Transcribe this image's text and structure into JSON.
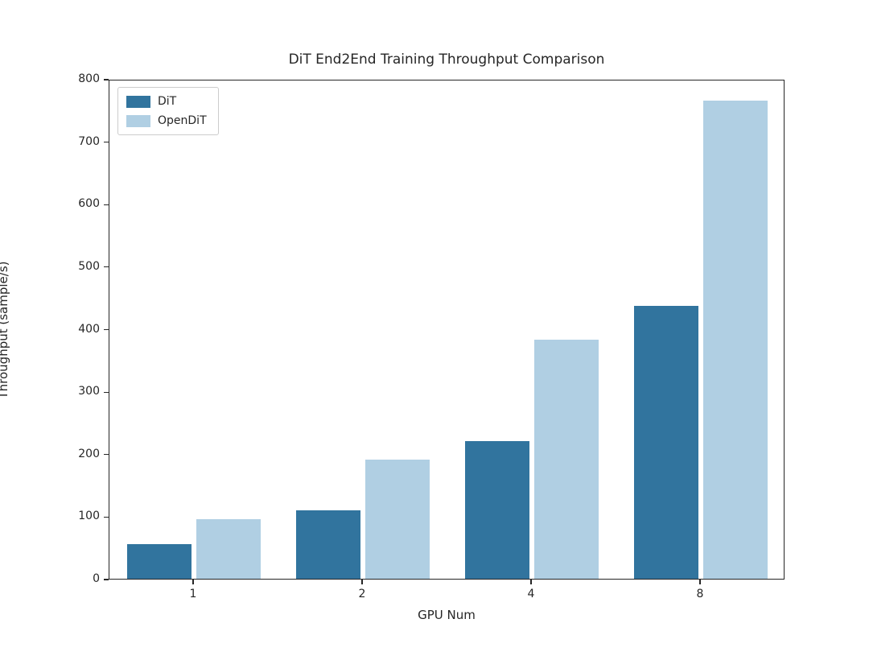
{
  "title": "DiT End2End Training Throughput Comparison",
  "chart_data": {
    "type": "bar",
    "categories": [
      "1",
      "2",
      "4",
      "8"
    ],
    "series": [
      {
        "name": "DiT",
        "color": "#31749e",
        "values": [
          56,
          110,
          220,
          437
        ]
      },
      {
        "name": "OpenDiT",
        "color": "#b0cfe3",
        "values": [
          95,
          191,
          383,
          765
        ]
      }
    ],
    "xlabel": "GPU Num",
    "ylabel": "Throughput (sample/s)",
    "ylim": [
      0,
      800
    ],
    "yticks": [
      0,
      100,
      200,
      300,
      400,
      500,
      600,
      700,
      800
    ],
    "legend_position": "upper left",
    "grid": false
  }
}
